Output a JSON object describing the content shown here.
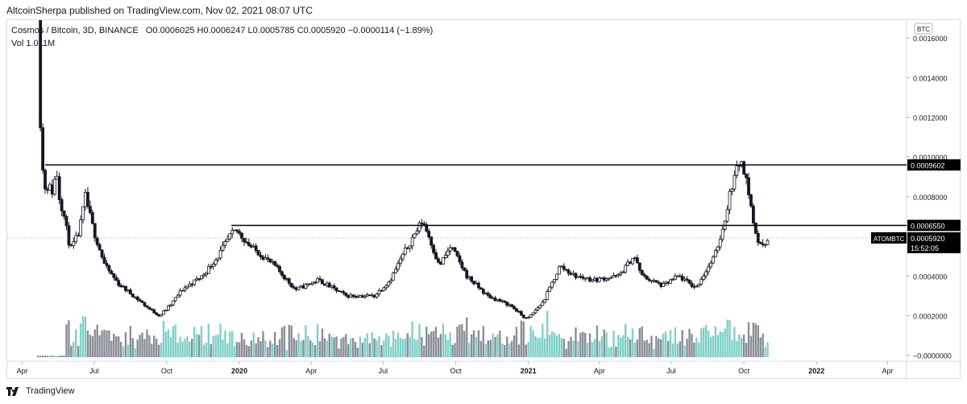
{
  "header": {
    "publish_text": "AltcoinSherpa published on TradingView.com, Nov 02, 2021 08:07 UTC"
  },
  "legend": {
    "symbol_text": "Cosmos / Bitcoin, 3D, BINANCE",
    "open": "O0.0006025",
    "high": "H0.0006247",
    "low": "L0.0005785",
    "close": "C0.0005920",
    "change": "−0.0000114 (−1.89%)",
    "volume": "Vol  1.011M"
  },
  "footer": {
    "brand": "TradingView"
  },
  "colors": {
    "up": "#ffffff",
    "down": "#131722",
    "vol_up": "#7fd1c8",
    "vol_down": "#8a8e96",
    "line": "#000000"
  },
  "chart_data": {
    "type": "candlestick",
    "currency_badge": "BTC",
    "ylim": [
      -3e-05,
      0.00169
    ],
    "y_ticks": [
      "0.0016000",
      "0.0014000",
      "0.0012000",
      "0.0010000",
      "0.0008000",
      "0.0004000",
      "0.0002000",
      "−0.0000000"
    ],
    "y_tick_values": [
      0.0016,
      0.0014,
      0.0012,
      0.001,
      0.0008,
      0.0004,
      0.0002,
      0.0
    ],
    "x_ticks": [
      {
        "label": "Apr",
        "date": "2019-04-01",
        "bold": false
      },
      {
        "label": "Jul",
        "date": "2019-07-01",
        "bold": false
      },
      {
        "label": "Oct",
        "date": "2019-10-01",
        "bold": false
      },
      {
        "label": "2020",
        "date": "2020-01-01",
        "bold": true
      },
      {
        "label": "Apr",
        "date": "2020-04-01",
        "bold": false
      },
      {
        "label": "Jul",
        "date": "2020-07-01",
        "bold": false
      },
      {
        "label": "Oct",
        "date": "2020-10-01",
        "bold": false
      },
      {
        "label": "2021",
        "date": "2021-01-01",
        "bold": true
      },
      {
        "label": "Apr",
        "date": "2021-04-01",
        "bold": false
      },
      {
        "label": "Jul",
        "date": "2021-07-01",
        "bold": false
      },
      {
        "label": "Oct",
        "date": "2021-10-01",
        "bold": false
      },
      {
        "label": "2022",
        "date": "2022-01-01",
        "bold": true
      },
      {
        "label": "Apr",
        "date": "2022-04-01",
        "bold": false
      }
    ],
    "x_range": [
      "2019-03-13",
      "2022-04-25"
    ],
    "price_series_anchors": [
      {
        "date": "2019-04-21",
        "value": 0.00205
      },
      {
        "date": "2019-04-24",
        "value": 0.00118
      },
      {
        "date": "2019-04-28",
        "value": 0.00085
      },
      {
        "date": "2019-05-05",
        "value": 0.00085
      },
      {
        "date": "2019-05-10",
        "value": 0.00082
      },
      {
        "date": "2019-05-14",
        "value": 0.00095
      },
      {
        "date": "2019-05-18",
        "value": 0.0008
      },
      {
        "date": "2019-05-24",
        "value": 0.0007
      },
      {
        "date": "2019-06-01",
        "value": 0.00053
      },
      {
        "date": "2019-06-12",
        "value": 0.00062
      },
      {
        "date": "2019-06-20",
        "value": 0.0008
      },
      {
        "date": "2019-07-01",
        "value": 0.00062
      },
      {
        "date": "2019-07-15",
        "value": 0.00045
      },
      {
        "date": "2019-08-01",
        "value": 0.00036
      },
      {
        "date": "2019-08-20",
        "value": 0.0003
      },
      {
        "date": "2019-09-10",
        "value": 0.00023
      },
      {
        "date": "2019-09-22",
        "value": 0.0002
      },
      {
        "date": "2019-10-05",
        "value": 0.00025
      },
      {
        "date": "2019-10-20",
        "value": 0.00033
      },
      {
        "date": "2019-11-15",
        "value": 0.0004
      },
      {
        "date": "2019-12-05",
        "value": 0.0005
      },
      {
        "date": "2019-12-20",
        "value": 0.0006
      },
      {
        "date": "2019-12-28",
        "value": 0.00063
      },
      {
        "date": "2020-01-15",
        "value": 0.00055
      },
      {
        "date": "2020-02-15",
        "value": 0.00045
      },
      {
        "date": "2020-03-12",
        "value": 0.00033
      },
      {
        "date": "2020-04-10",
        "value": 0.00038
      },
      {
        "date": "2020-05-15",
        "value": 0.0003
      },
      {
        "date": "2020-06-20",
        "value": 0.0003
      },
      {
        "date": "2020-07-10",
        "value": 0.00038
      },
      {
        "date": "2020-07-28",
        "value": 0.00052
      },
      {
        "date": "2020-08-20",
        "value": 0.00068
      },
      {
        "date": "2020-08-28",
        "value": 0.0006
      },
      {
        "date": "2020-09-10",
        "value": 0.00045
      },
      {
        "date": "2020-09-25",
        "value": 0.00055
      },
      {
        "date": "2020-10-15",
        "value": 0.0004
      },
      {
        "date": "2020-11-10",
        "value": 0.0003
      },
      {
        "date": "2020-12-10",
        "value": 0.00025
      },
      {
        "date": "2020-12-30",
        "value": 0.00018
      },
      {
        "date": "2021-01-20",
        "value": 0.00027
      },
      {
        "date": "2021-02-10",
        "value": 0.00045
      },
      {
        "date": "2021-03-01",
        "value": 0.0004
      },
      {
        "date": "2021-03-25",
        "value": 0.00038
      },
      {
        "date": "2021-04-25",
        "value": 0.0004
      },
      {
        "date": "2021-05-15",
        "value": 0.0005
      },
      {
        "date": "2021-05-25",
        "value": 0.0004
      },
      {
        "date": "2021-06-20",
        "value": 0.00035
      },
      {
        "date": "2021-07-10",
        "value": 0.0004
      },
      {
        "date": "2021-08-01",
        "value": 0.00034
      },
      {
        "date": "2021-08-25",
        "value": 0.0005
      },
      {
        "date": "2021-09-05",
        "value": 0.00065
      },
      {
        "date": "2021-09-15",
        "value": 0.00085
      },
      {
        "date": "2021-09-28",
        "value": 0.001
      },
      {
        "date": "2021-10-08",
        "value": 0.0008
      },
      {
        "date": "2021-10-15",
        "value": 0.00062
      },
      {
        "date": "2021-10-22",
        "value": 0.00055
      },
      {
        "date": "2021-11-01",
        "value": 0.00059
      }
    ],
    "horizontal_lines": [
      {
        "value": 0.0009602,
        "start": "2019-04-30",
        "label": "0.0009602"
      },
      {
        "value": 0.000655,
        "start": "2019-12-22",
        "label": "0.0006550"
      }
    ],
    "current_price": {
      "value": 0.000592,
      "symbol": "ATOMBTC",
      "label": "0.0005920",
      "countdown": "15:52:05"
    }
  }
}
